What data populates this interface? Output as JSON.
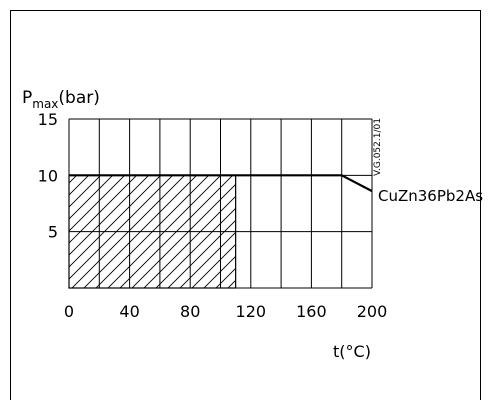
{
  "chart_data": {
    "type": "line",
    "title": "",
    "ylabel_main": "P",
    "ylabel_sub": "max",
    "ylabel_unit": "(bar)",
    "xlabel": "t(°C)",
    "xlim": [
      0,
      200
    ],
    "ylim": [
      0,
      15
    ],
    "x_ticks": [
      0,
      40,
      80,
      120,
      160,
      200
    ],
    "y_ticks": [
      5,
      10,
      15
    ],
    "x_grid": [
      0,
      20,
      40,
      60,
      80,
      100,
      120,
      140,
      160,
      180,
      200
    ],
    "y_grid": [
      0,
      5,
      10,
      15
    ],
    "grid": true,
    "series": [
      {
        "name": "CuZn36Pb2As",
        "x": [
          0,
          180,
          200
        ],
        "y": [
          10,
          10,
          8.6
        ]
      }
    ],
    "hatched_region": {
      "x": [
        0,
        110
      ],
      "y": [
        0,
        10
      ]
    },
    "annotation": "V.G.052.1/01"
  }
}
